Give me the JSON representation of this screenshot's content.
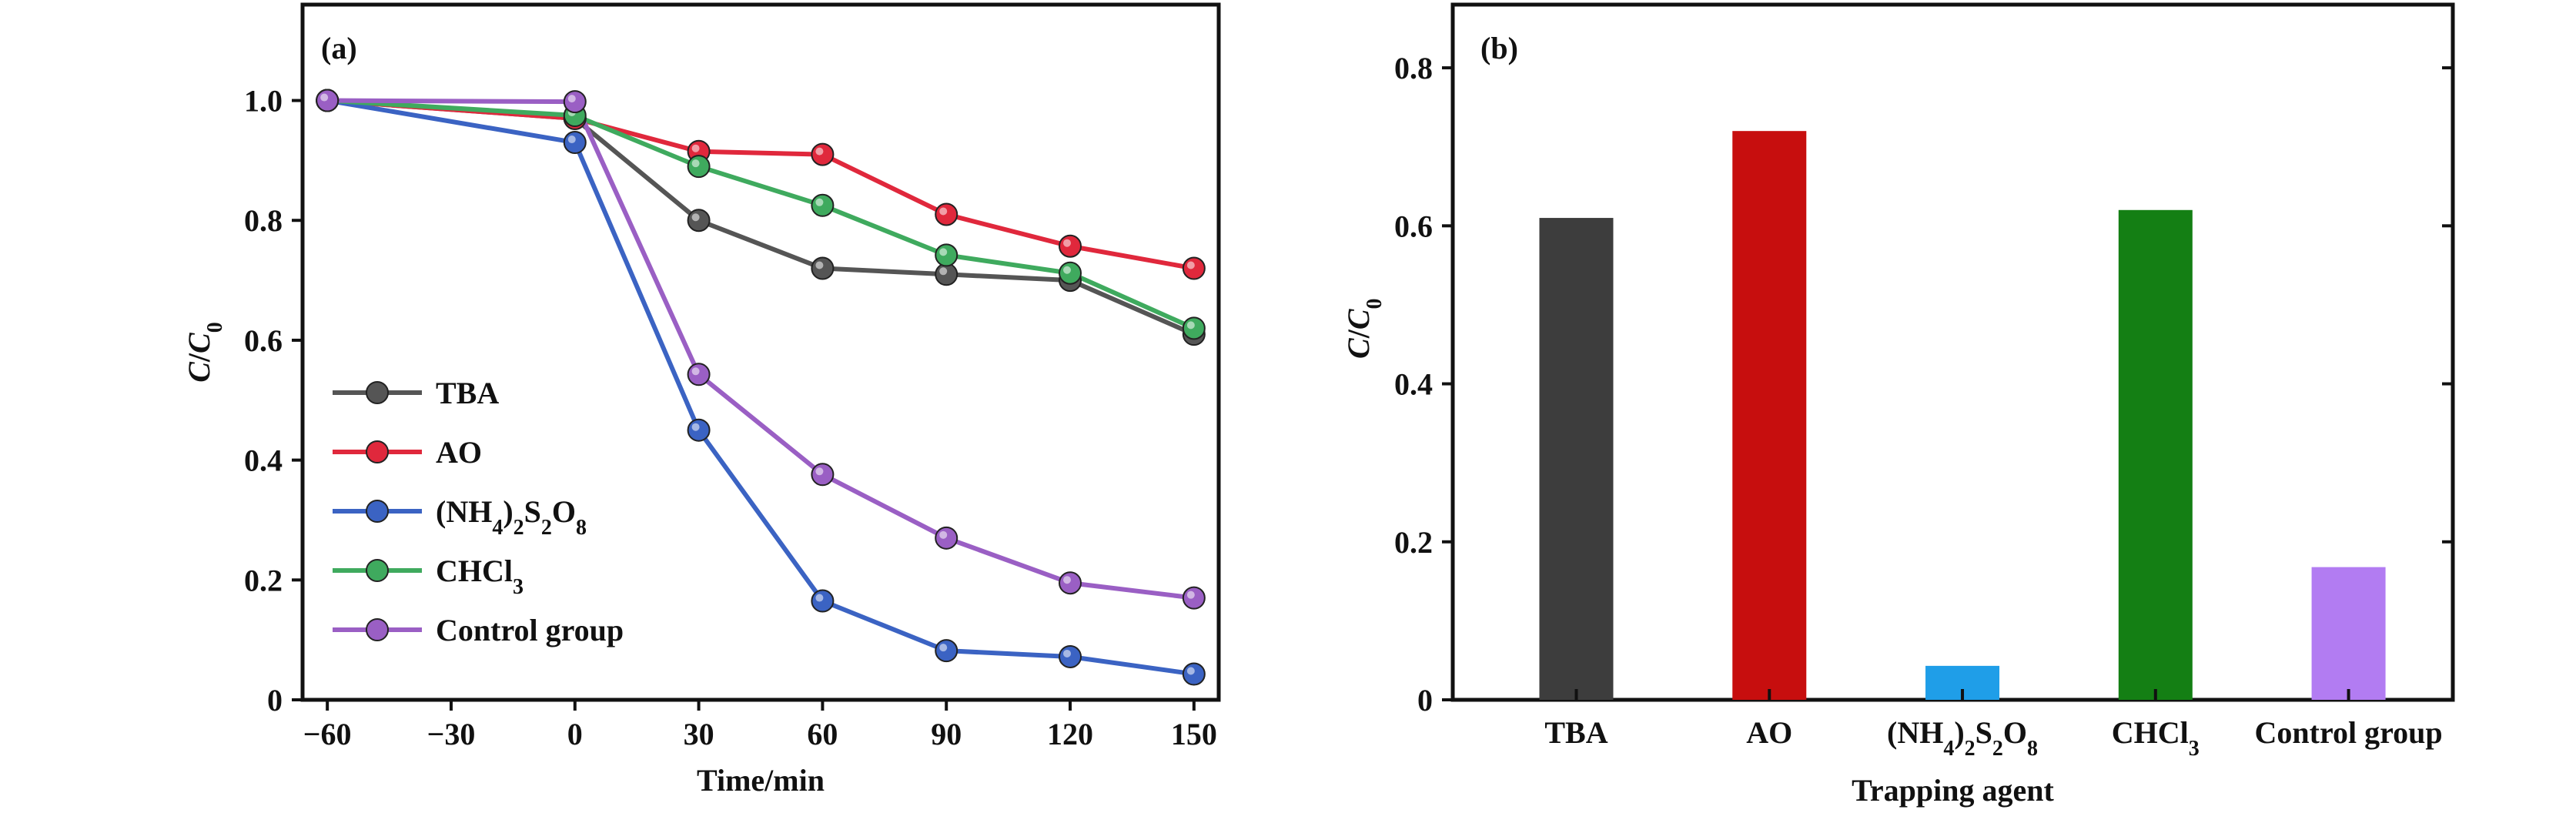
{
  "chart_data": [
    {
      "panel_label": "(a)",
      "type": "line",
      "xlabel": "Time/min",
      "ylabel": {
        "main": "C",
        "sep": "/",
        "main2": "C",
        "sub": "0"
      },
      "xlim": [
        -66,
        156
      ],
      "ylim": [
        0,
        1.16
      ],
      "x_ticks": [
        -60,
        -30,
        0,
        30,
        60,
        90,
        120,
        150
      ],
      "x_tick_labels": [
        "−60",
        "−30",
        "0",
        "30",
        "60",
        "90",
        "120",
        "150"
      ],
      "y_ticks": [
        0,
        0.2,
        0.4,
        0.6,
        0.8,
        1.0
      ],
      "y_tick_labels": [
        "0",
        "0.2",
        "0.4",
        "0.6",
        "0.8",
        "1.0"
      ],
      "legend_position": "lower-left",
      "x": [
        -60,
        0,
        30,
        60,
        90,
        120,
        150
      ],
      "series": [
        {
          "name": {
            "parts": [
              {
                "t": "TBA"
              }
            ]
          },
          "color": "#555555",
          "values": [
            1.0,
            0.97,
            0.8,
            0.72,
            0.71,
            0.7,
            0.61
          ]
        },
        {
          "name": {
            "parts": [
              {
                "t": "AO"
              }
            ]
          },
          "color": "#e0283c",
          "values": [
            1.0,
            0.97,
            0.915,
            0.91,
            0.81,
            0.757,
            0.72
          ]
        },
        {
          "name": {
            "parts": [
              {
                "t": "(NH"
              },
              {
                "t": "4",
                "s": 1
              },
              {
                "t": ")"
              },
              {
                "t": "2",
                "s": 1
              },
              {
                "t": "S"
              },
              {
                "t": "2",
                "s": 1
              },
              {
                "t": "O"
              },
              {
                "t": "8",
                "s": 1
              }
            ]
          },
          "color": "#3b63c3",
          "values": [
            1.0,
            0.93,
            0.45,
            0.165,
            0.082,
            0.072,
            0.043
          ]
        },
        {
          "name": {
            "parts": [
              {
                "t": "CHCl"
              },
              {
                "t": "3",
                "s": 1
              }
            ]
          },
          "color": "#3faa5e",
          "values": [
            1.0,
            0.975,
            0.89,
            0.825,
            0.742,
            0.712,
            0.62
          ]
        },
        {
          "name": {
            "parts": [
              {
                "t": "Control group"
              }
            ]
          },
          "color": "#9a5fc4",
          "values": [
            1.0,
            0.998,
            0.543,
            0.376,
            0.27,
            0.195,
            0.17
          ]
        }
      ]
    },
    {
      "panel_label": "(b)",
      "type": "bar",
      "xlabel": "Trapping agent",
      "ylabel": {
        "main": "C",
        "sep": "/",
        "main2": "C",
        "sub": "0"
      },
      "ylim": [
        0,
        0.88
      ],
      "y_ticks": [
        0,
        0.2,
        0.4,
        0.6,
        0.8
      ],
      "y_tick_labels": [
        "0",
        "0.2",
        "0.4",
        "0.6",
        "0.8"
      ],
      "categories": [
        {
          "parts": [
            {
              "t": "TBA"
            }
          ]
        },
        {
          "parts": [
            {
              "t": "AO"
            }
          ]
        },
        {
          "parts": [
            {
              "t": "(NH"
            },
            {
              "t": "4",
              "s": 1
            },
            {
              "t": ")"
            },
            {
              "t": "2",
              "s": 1
            },
            {
              "t": "S"
            },
            {
              "t": "2",
              "s": 1
            },
            {
              "t": "O"
            },
            {
              "t": "8",
              "s": 1
            }
          ]
        },
        {
          "parts": [
            {
              "t": "CHCl"
            },
            {
              "t": "3",
              "s": 1
            }
          ]
        },
        {
          "parts": [
            {
              "t": "Control group"
            }
          ]
        }
      ],
      "values": [
        0.61,
        0.72,
        0.043,
        0.62,
        0.168
      ],
      "colors": [
        "#3d3d3d",
        "#c70e0e",
        "#1f9ee8",
        "#147f14",
        "#b27cf2"
      ]
    }
  ]
}
